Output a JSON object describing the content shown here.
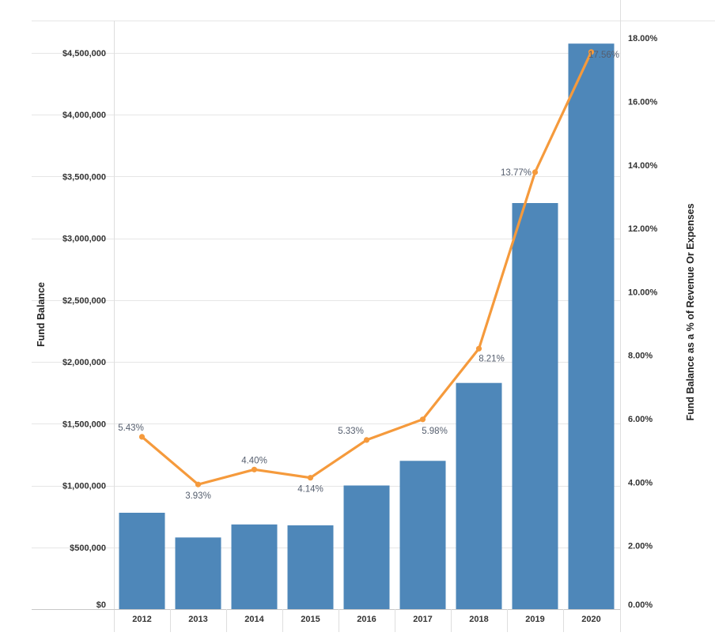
{
  "chart_data": {
    "type": "bar",
    "categories": [
      "2012",
      "2013",
      "2014",
      "2015",
      "2016",
      "2017",
      "2018",
      "2019",
      "2020"
    ],
    "series": [
      {
        "type": "bar",
        "axis": "left",
        "values": [
          780000,
          580000,
          685000,
          678000,
          1000000,
          1200000,
          1830000,
          3285000,
          4575000
        ]
      },
      {
        "type": "line",
        "axis": "right",
        "values": [
          5.43,
          3.93,
          4.4,
          4.14,
          5.33,
          5.98,
          8.21,
          13.77,
          17.56
        ],
        "data_labels": [
          "5.43%",
          "3.93%",
          "4.40%",
          "4.14%",
          "5.33%",
          "5.98%",
          "8.21%",
          "13.77%",
          "17.56%"
        ]
      }
    ],
    "ylabel": "Fund Balance",
    "y2label": "Fund Balance as a % of Revenue Or Expenses",
    "ylim": [
      0,
      4800000
    ],
    "y2lim": [
      0,
      18.7
    ],
    "yticks": [
      0,
      500000,
      1000000,
      1500000,
      2000000,
      2500000,
      3000000,
      3500000,
      4000000,
      4500000
    ],
    "ytick_labels": [
      "$0",
      "$500,000",
      "$1,000,000",
      "$1,500,000",
      "$2,000,000",
      "$2,500,000",
      "$3,000,000",
      "$3,500,000",
      "$4,000,000",
      "$4,500,000"
    ],
    "y2ticks": [
      0,
      2,
      4,
      6,
      8,
      10,
      12,
      14,
      16,
      18
    ],
    "y2tick_labels": [
      "0.00%",
      "2.00%",
      "4.00%",
      "6.00%",
      "8.00%",
      "10.00%",
      "12.00%",
      "14.00%",
      "16.00%",
      "18.00%"
    ],
    "grid": true,
    "legend": "none",
    "colors": {
      "bar": "#4e87b9",
      "line": "#f59a3c",
      "grid": "#e6e6e6",
      "frame": "#dedede",
      "label": "#555e6e",
      "tick": "#333333"
    }
  }
}
